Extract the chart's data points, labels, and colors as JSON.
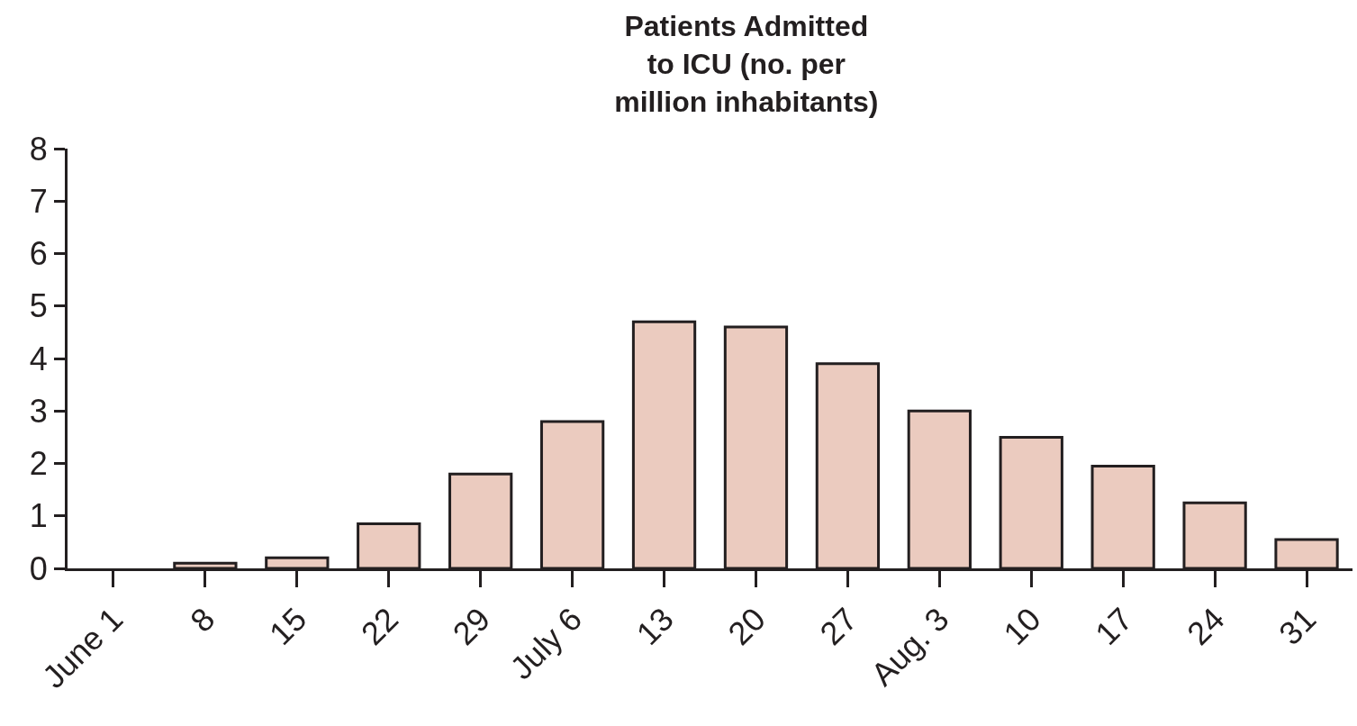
{
  "chart_data": {
    "type": "bar",
    "title": "Patients Admitted\nto ICU (no. per\nmillion inhabitants)",
    "categories": [
      "June 1",
      "8",
      "15",
      "22",
      "29",
      "July 6",
      "13",
      "20",
      "27",
      "Aug. 3",
      "10",
      "17",
      "24",
      "31"
    ],
    "values": [
      0,
      0.1,
      0.2,
      0.85,
      1.8,
      2.8,
      4.7,
      4.6,
      3.9,
      3.0,
      2.5,
      1.95,
      1.25,
      0.55
    ],
    "color": "#ebcbbf",
    "ylim": [
      0,
      8
    ],
    "yticks": [
      0,
      1,
      2,
      3,
      4,
      5,
      6,
      7,
      8
    ],
    "legend": false
  }
}
